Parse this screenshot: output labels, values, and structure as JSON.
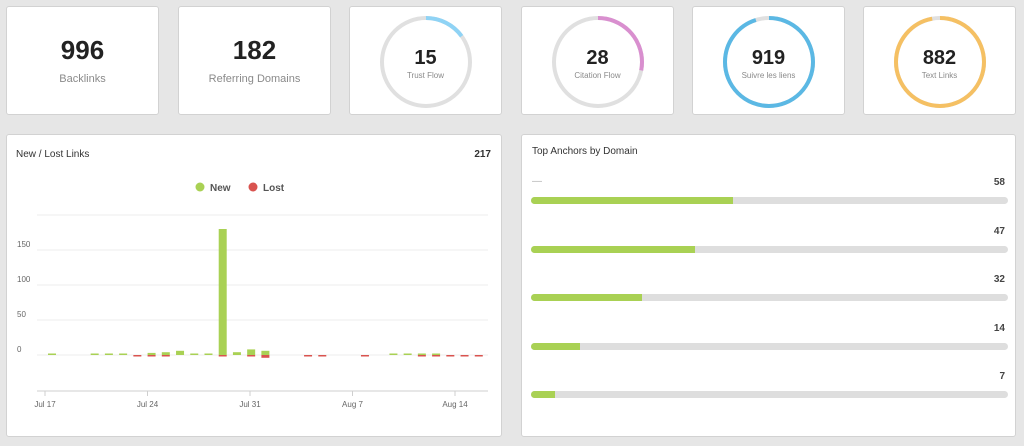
{
  "stats": [
    {
      "value": "996",
      "label": "Backlinks"
    },
    {
      "value": "182",
      "label": "Referring Domains"
    }
  ],
  "rings": [
    {
      "value": "15",
      "label": "Trust Flow",
      "fraction": 0.15,
      "color": "#8fd3f5"
    },
    {
      "value": "28",
      "label": "Citation Flow",
      "fraction": 0.28,
      "color": "#d98fcf"
    },
    {
      "value": "919",
      "label": "Suivre les liens",
      "fraction": 0.95,
      "color": "#5bb8e4"
    },
    {
      "value": "882",
      "label": "Text Links",
      "fraction": 0.97,
      "color": "#f5c063"
    }
  ],
  "ring_track_color": "#e0e0e0",
  "links_panel": {
    "title": "New / Lost Links",
    "total": "217",
    "legend": {
      "new": "New",
      "lost": "Lost"
    }
  },
  "chart_data": {
    "type": "bar",
    "series": [
      {
        "name": "New",
        "color": "#a9d154",
        "values": [
          1,
          0,
          0,
          1,
          2,
          1,
          0,
          3,
          4,
          6,
          1,
          1,
          180,
          4,
          8,
          6,
          0,
          0,
          0,
          0,
          0,
          0,
          0,
          0,
          1,
          1,
          1,
          1,
          0,
          0,
          0
        ]
      },
      {
        "name": "Lost",
        "color": "#d9534f",
        "values": [
          0,
          0,
          0,
          0,
          0,
          0,
          2,
          1,
          1,
          0,
          0,
          0,
          1,
          0,
          2,
          4,
          0,
          0,
          1,
          1,
          0,
          0,
          1,
          0,
          0,
          0,
          1,
          1,
          1,
          1,
          1
        ]
      }
    ],
    "x_ticks": [
      "Jul 17",
      "Jul 24",
      "Jul 31",
      "Aug 7",
      "Aug 14"
    ],
    "y_ticks": [
      "150",
      "100",
      "50",
      "0"
    ],
    "xlabel": "",
    "ylabel": "",
    "ylim": [
      0,
      200
    ]
  },
  "anchors_panel": {
    "title": "Top Anchors by Domain",
    "max": 137,
    "items": [
      {
        "label": "—",
        "value": "58"
      },
      {
        "label": "",
        "value": "47"
      },
      {
        "label": "",
        "value": "32"
      },
      {
        "label": "",
        "value": "14"
      },
      {
        "label": "",
        "value": "7"
      }
    ],
    "fill_color": "#a9d154",
    "track_color": "#dedede"
  }
}
